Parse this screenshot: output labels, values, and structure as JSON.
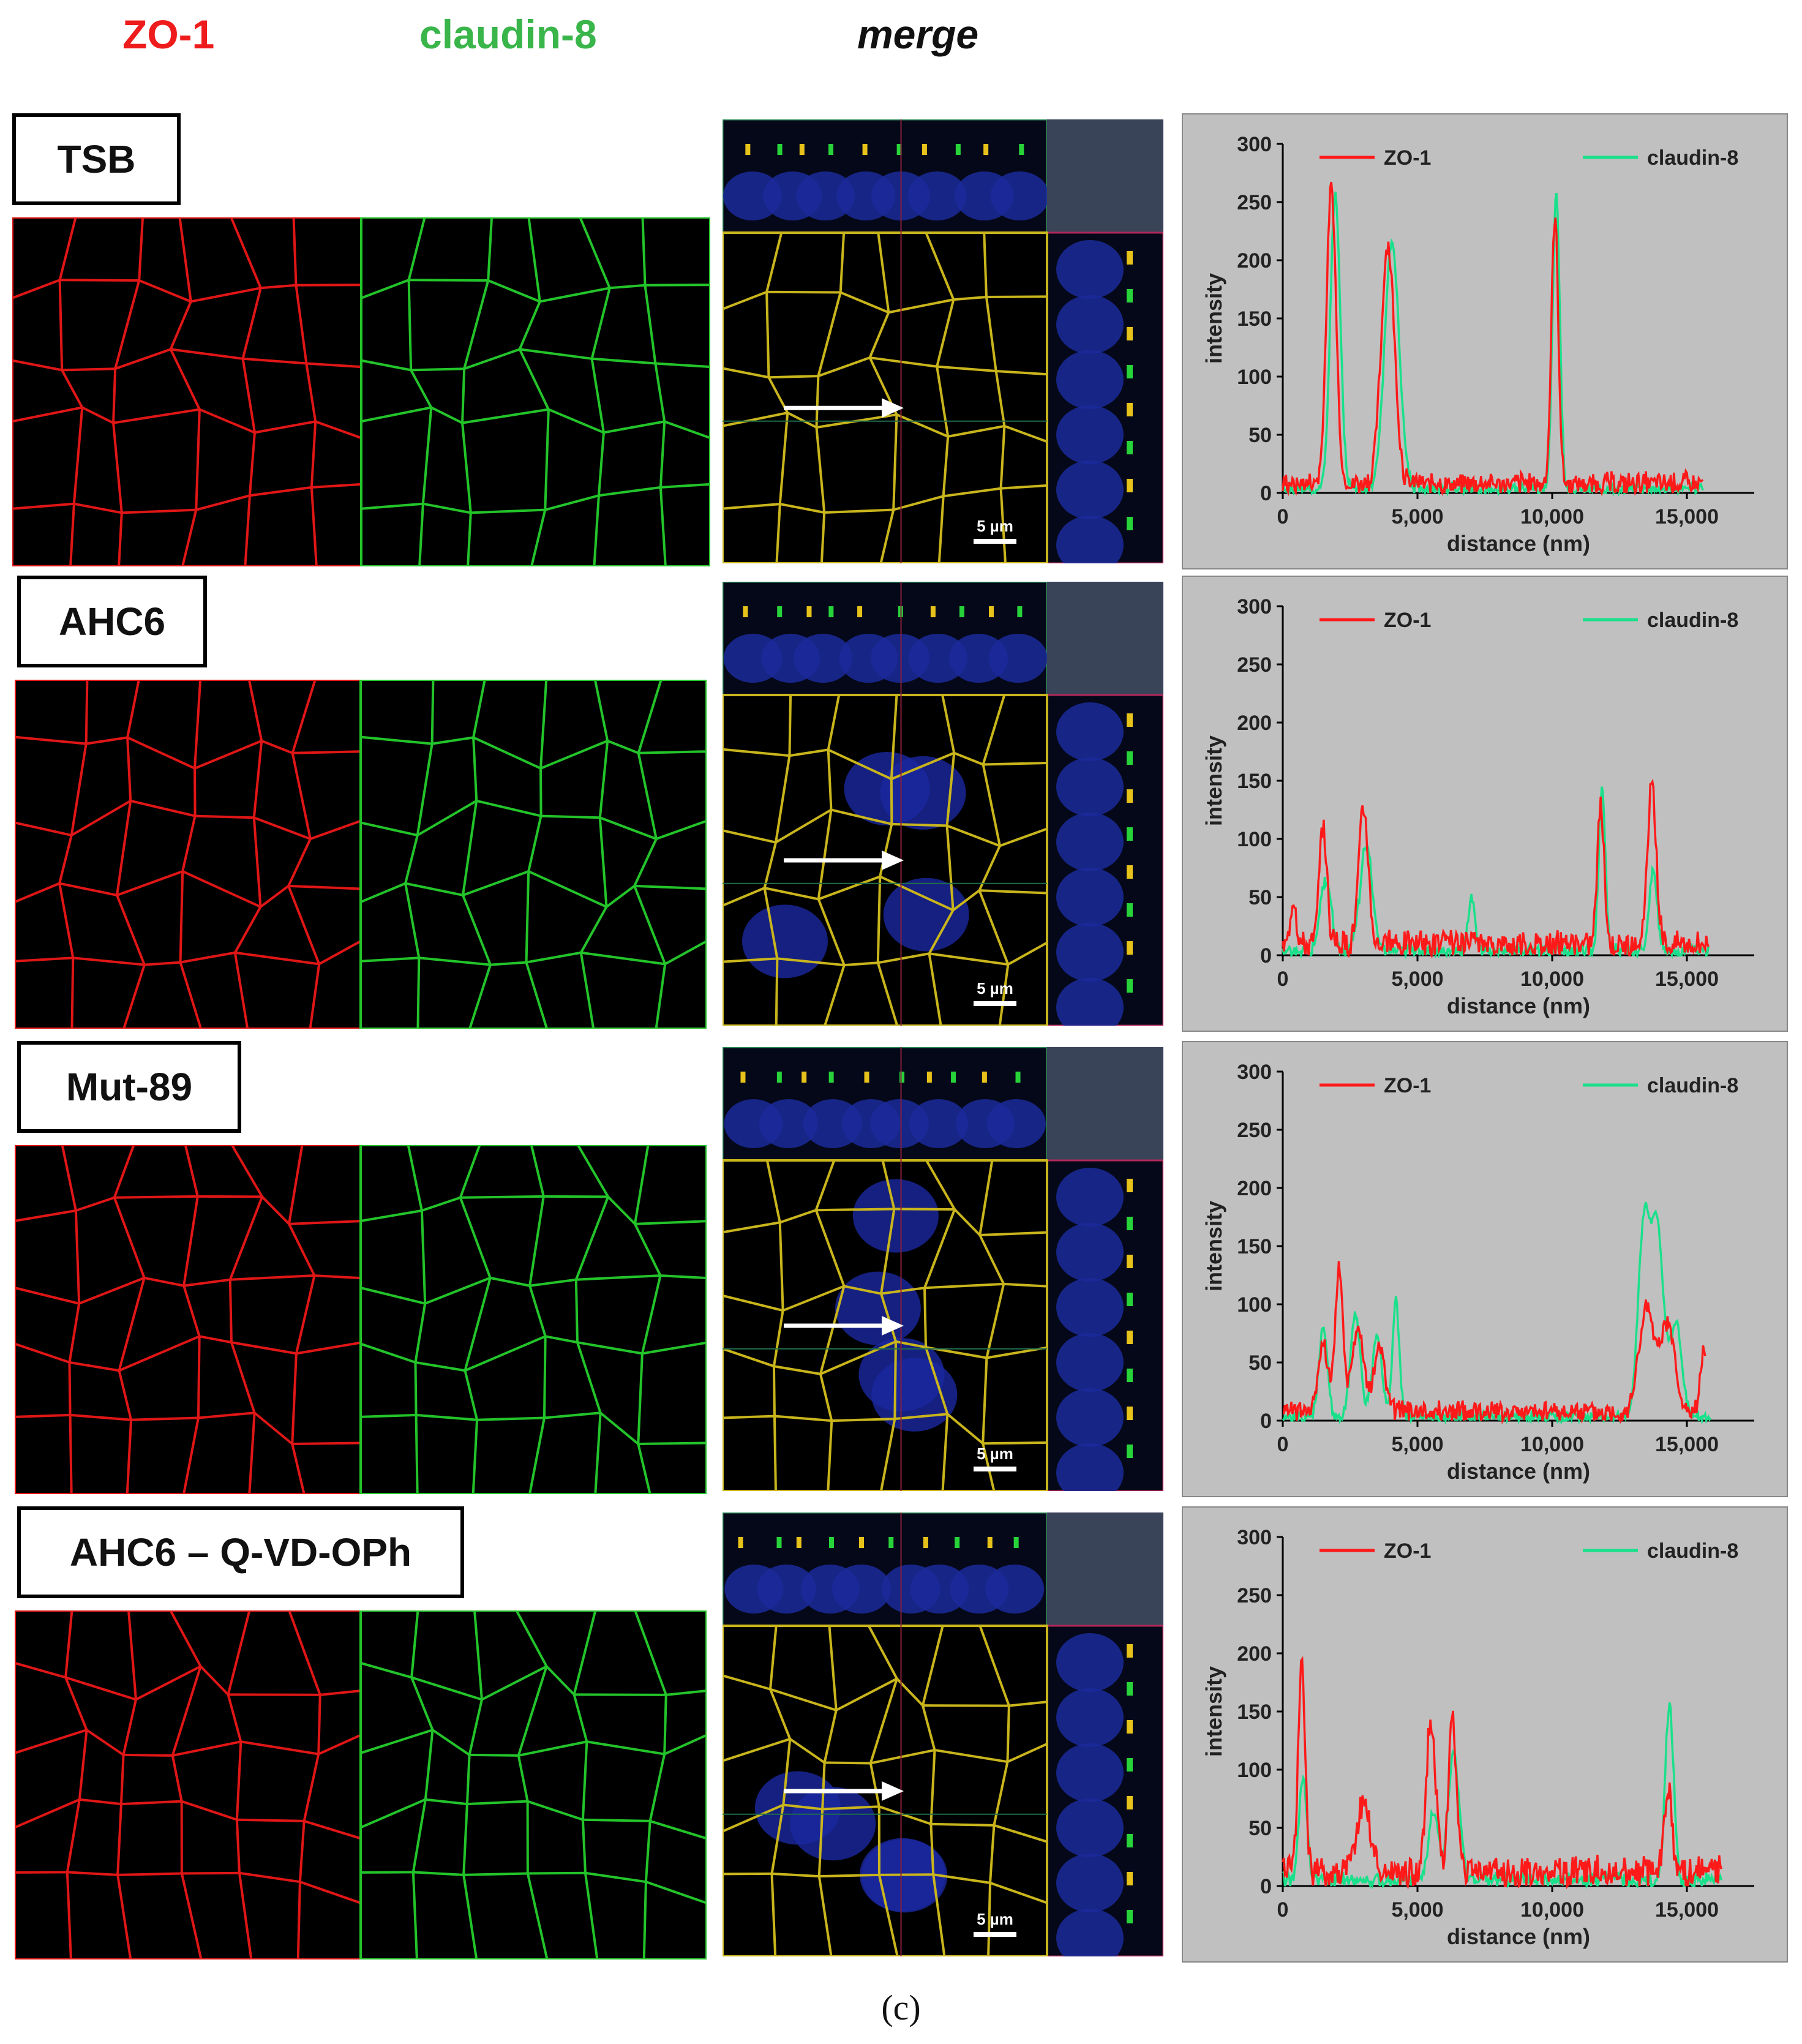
{
  "headers": {
    "zo1": "ZO-1",
    "claudin8": "claudin-8",
    "merge": "merge"
  },
  "panels": [
    {
      "condition": "TSB",
      "scale_bar": "5 µm"
    },
    {
      "condition": "AHC6",
      "scale_bar": "5 µm"
    },
    {
      "condition": "Mut-89",
      "scale_bar": "5 µm"
    },
    {
      "condition": "AHC6 – Q-VD-OPh",
      "scale_bar": "5 µm"
    }
  ],
  "colors": {
    "zo1": "#ff1a1a",
    "claudin8": "#19e08a",
    "plot_bg": "#c0c0c0",
    "merge_corner": "#3a4459"
  },
  "chart_data": [
    {
      "type": "line",
      "xlabel": "distance (nm)",
      "ylabel": "intensity",
      "xlim": [
        0,
        17500
      ],
      "ylim": [
        0,
        300
      ],
      "xticks": [
        "0",
        "5,000",
        "10,000",
        "15,000"
      ],
      "yticks": [
        "0",
        "50",
        "100",
        "150",
        "200",
        "250",
        "300"
      ],
      "legend": "top",
      "x_end": [
        15600,
        15600
      ],
      "series": [
        {
          "name": "ZO-1",
          "baseline": 8,
          "peaks": [
            [
              1800,
              255,
              250
            ],
            [
              3900,
              205,
              350
            ],
            [
              10100,
              230,
              180
            ]
          ]
        },
        {
          "name": "claudin-8",
          "baseline": 3,
          "peaks": [
            [
              1950,
              255,
              260
            ],
            [
              4050,
              212,
              380
            ],
            [
              10150,
              255,
              190
            ]
          ]
        }
      ]
    },
    {
      "type": "line",
      "xlabel": "distance (nm)",
      "ylabel": "intensity",
      "xlim": [
        0,
        17500
      ],
      "ylim": [
        0,
        300
      ],
      "xticks": [
        "0",
        "5,000",
        "10,000",
        "15,000"
      ],
      "yticks": [
        "0",
        "50",
        "100",
        "150",
        "200",
        "250",
        "300"
      ],
      "legend": "top",
      "x_end": [
        15800,
        15800
      ],
      "series": [
        {
          "name": "ZO-1",
          "baseline": 10,
          "peaks": [
            [
              1500,
              100,
              200
            ],
            [
              3000,
              118,
              250
            ],
            [
              11800,
              118,
              180
            ],
            [
              13700,
              135,
              220
            ],
            [
              400,
              40,
              150
            ]
          ]
        },
        {
          "name": "claudin-8",
          "baseline": 4,
          "peaks": [
            [
              1600,
              60,
              300
            ],
            [
              3100,
              90,
              320
            ],
            [
              7000,
              45,
              180
            ],
            [
              11850,
              140,
              170
            ],
            [
              13750,
              70,
              200
            ]
          ]
        }
      ]
    },
    {
      "type": "line",
      "xlabel": "distance (nm)",
      "ylabel": "intensity",
      "xlim": [
        0,
        17500
      ],
      "ylim": [
        0,
        300
      ],
      "xticks": [
        "0",
        "5,000",
        "10,000",
        "15,000"
      ],
      "yticks": [
        "0",
        "50",
        "100",
        "150",
        "200",
        "250",
        "300"
      ],
      "legend": "top",
      "x_end": [
        15700,
        15900
      ],
      "series": [
        {
          "name": "ZO-1",
          "baseline": 8,
          "peaks": [
            [
              1500,
              60,
              250
            ],
            [
              2100,
              125,
              200
            ],
            [
              2800,
              70,
              300
            ],
            [
              3600,
              55,
              300
            ],
            [
              13500,
              90,
              400
            ],
            [
              14300,
              75,
              350
            ],
            [
              15600,
              50,
              150
            ]
          ]
        },
        {
          "name": "claudin-8",
          "baseline": 3,
          "peaks": [
            [
              1500,
              78,
              220
            ],
            [
              2700,
              88,
              250
            ],
            [
              3500,
              72,
              250
            ],
            [
              4200,
              100,
              180
            ],
            [
              13400,
              160,
              300
            ],
            [
              13900,
              160,
              330
            ],
            [
              14600,
              80,
              300
            ]
          ]
        }
      ]
    },
    {
      "type": "line",
      "xlabel": "distance (nm)",
      "ylabel": "intensity",
      "xlim": [
        0,
        17500
      ],
      "ylim": [
        0,
        300
      ],
      "xticks": [
        "0",
        "5,000",
        "10,000",
        "15,000"
      ],
      "yticks": [
        "0",
        "50",
        "100",
        "150",
        "200",
        "250",
        "300"
      ],
      "legend": "top",
      "x_end": [
        16300,
        16300
      ],
      "series": [
        {
          "name": "ZO-1",
          "baseline": 12,
          "peaks": [
            [
              700,
              182,
              180
            ],
            [
              3000,
              60,
              350
            ],
            [
              5500,
              130,
              250
            ],
            [
              6300,
              135,
              200
            ],
            [
              14300,
              75,
              200
            ]
          ]
        },
        {
          "name": "claudin-8",
          "baseline": 5,
          "peaks": [
            [
              750,
              90,
              200
            ],
            [
              5600,
              60,
              250
            ],
            [
              6350,
              110,
              280
            ],
            [
              14350,
              152,
              220
            ]
          ]
        }
      ]
    }
  ],
  "caption": "(c)"
}
